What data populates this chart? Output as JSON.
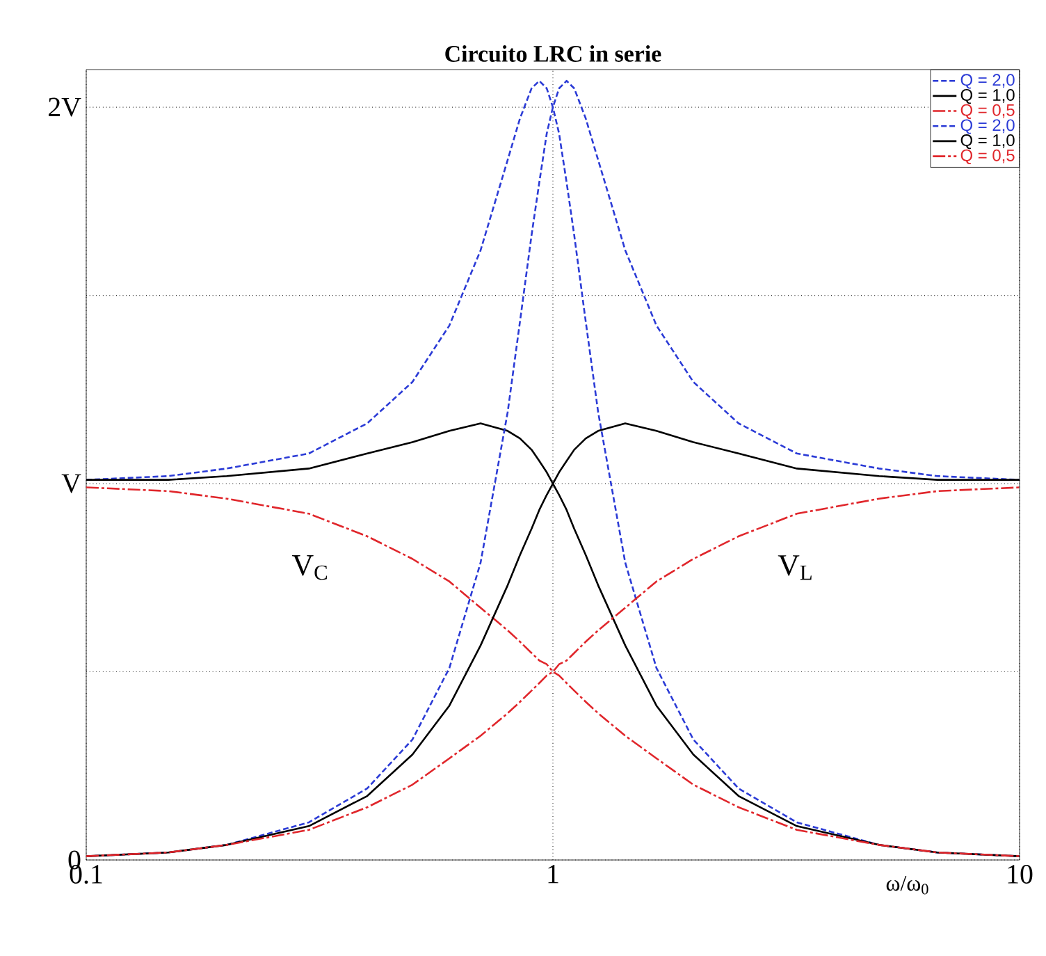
{
  "chart_data": {
    "type": "line",
    "title": "Circuito LRC in serie",
    "xlabel": "ω/ω$_{0}$",
    "log": "x",
    "grid": true,
    "legend": "top right",
    "marker": "none",
    "xlim": [
      0.1,
      10
    ],
    "ylim": [
      0,
      2.1
    ],
    "xticks": [
      0.1,
      1,
      10
    ],
    "yticks": [
      0,
      {
        "value": 0.5,
        "label": null
      },
      {
        "value": 1,
        "label": "V"
      },
      {
        "value": 1.5,
        "label": null
      },
      {
        "value": 2,
        "label": "2V"
      }
    ],
    "x": [
      0.1,
      0.15,
      0.2,
      0.3,
      0.4,
      0.5,
      0.6,
      0.7,
      0.8,
      0.85,
      0.9,
      0.935,
      0.97,
      1,
      1.031,
      1.07,
      1.111,
      1.176,
      1.25,
      1.429,
      1.667,
      2,
      2.5,
      3.333,
      5,
      6.667,
      10
    ],
    "series": [
      {
        "name": "Q = 2,0",
        "color": "#2b3bd6",
        "line_style": "dashed",
        "values": [
          1.01,
          1.02,
          1.04,
          1.08,
          1.16,
          1.27,
          1.42,
          1.62,
          1.86,
          1.97,
          2.05,
          2.07,
          2.05,
          2,
          1.93,
          1.8,
          1.66,
          1.43,
          1.19,
          0.79,
          0.51,
          0.32,
          0.19,
          0.1,
          0.04,
          0.02,
          0.01
        ]
      },
      {
        "name": "Q = 1,0",
        "color": "#000000",
        "line_style": "solid",
        "values": [
          1.01,
          1.01,
          1.02,
          1.04,
          1.08,
          1.11,
          1.14,
          1.16,
          1.14,
          1.12,
          1.09,
          1.06,
          1.03,
          1,
          0.97,
          0.93,
          0.88,
          0.81,
          0.73,
          0.57,
          0.41,
          0.28,
          0.17,
          0.09,
          0.04,
          0.02,
          0.01
        ]
      },
      {
        "name": "Q = 0,5",
        "color": "#e0262b",
        "line_style": "dashdot",
        "values": [
          0.99,
          0.98,
          0.96,
          0.92,
          0.86,
          0.8,
          0.74,
          0.67,
          0.61,
          0.58,
          0.55,
          0.53,
          0.52,
          0.5,
          0.49,
          0.47,
          0.45,
          0.42,
          0.39,
          0.33,
          0.27,
          0.2,
          0.14,
          0.08,
          0.04,
          0.02,
          0.01
        ]
      },
      {
        "name": "Q = 2,0",
        "color": "#2b3bd6",
        "line_style": "dashed",
        "values": [
          0.01,
          0.02,
          0.04,
          0.1,
          0.19,
          0.32,
          0.51,
          0.79,
          1.19,
          1.43,
          1.66,
          1.8,
          1.93,
          2,
          2.05,
          2.07,
          2.05,
          1.97,
          1.86,
          1.62,
          1.42,
          1.27,
          1.16,
          1.08,
          1.04,
          1.02,
          1.01
        ]
      },
      {
        "name": "Q = 1,0",
        "color": "#000000",
        "line_style": "solid",
        "values": [
          0.01,
          0.02,
          0.04,
          0.09,
          0.17,
          0.28,
          0.41,
          0.57,
          0.73,
          0.81,
          0.88,
          0.93,
          0.97,
          1,
          1.03,
          1.06,
          1.09,
          1.12,
          1.14,
          1.16,
          1.14,
          1.11,
          1.08,
          1.04,
          1.02,
          1.01,
          1.01
        ]
      },
      {
        "name": "Q = 0,5",
        "color": "#e0262b",
        "line_style": "dashdot",
        "values": [
          0.01,
          0.02,
          0.04,
          0.08,
          0.14,
          0.2,
          0.27,
          0.33,
          0.39,
          0.42,
          0.45,
          0.47,
          0.49,
          0.5,
          0.52,
          0.53,
          0.55,
          0.58,
          0.61,
          0.67,
          0.74,
          0.8,
          0.86,
          0.92,
          0.96,
          0.98,
          0.99
        ]
      }
    ],
    "annotations": [
      "V$_{C}$",
      "V$_{L}$"
    ]
  }
}
